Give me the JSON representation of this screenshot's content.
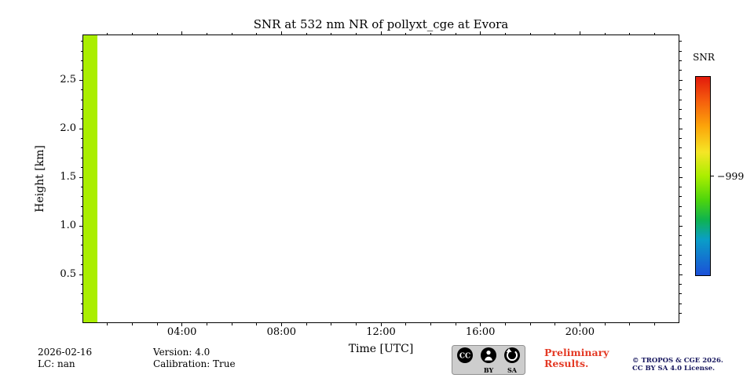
{
  "page": {
    "background": "#ffffff"
  },
  "chart_data": {
    "type": "heatmap",
    "title": "SNR at 532 nm NR of pollyxt_cge at Evora",
    "xlabel": "Time [UTC]",
    "ylabel": "Height [km]",
    "xlim_hours": [
      0,
      24
    ],
    "ylim_km": [
      0,
      2.97
    ],
    "x_major_ticks": [
      {
        "hour": 4,
        "label": "04:00"
      },
      {
        "hour": 8,
        "label": "08:00"
      },
      {
        "hour": 12,
        "label": "12:00"
      },
      {
        "hour": 16,
        "label": "16:00"
      },
      {
        "hour": 20,
        "label": "20:00"
      }
    ],
    "x_minor_step_hours": 1,
    "y_major_ticks": [
      {
        "km": 0.5,
        "label": "0.5"
      },
      {
        "km": 1.0,
        "label": "1.0"
      },
      {
        "km": 1.5,
        "label": "1.5"
      },
      {
        "km": 2.0,
        "label": "2.0"
      },
      {
        "km": 2.5,
        "label": "2.5"
      }
    ],
    "y_minor_step_km": 0.1,
    "empty_color": "#ffffff",
    "data_blocks": [
      {
        "x_start_hour": 0,
        "x_end_hour": 0.6,
        "y_start_km": 0,
        "y_end_km": 2.97,
        "value": -999,
        "color": "#aaee00"
      }
    ],
    "colorbar": {
      "label": "SNR",
      "tick_label": "−999",
      "tick_value": -999,
      "tick_pos_frac": 0.5,
      "stops": [
        {
          "pos": 0.0,
          "color": "#e31a0c"
        },
        {
          "pos": 0.12,
          "color": "#f55d0d"
        },
        {
          "pos": 0.25,
          "color": "#fca50a"
        },
        {
          "pos": 0.38,
          "color": "#f5e626"
        },
        {
          "pos": 0.5,
          "color": "#aaee00"
        },
        {
          "pos": 0.62,
          "color": "#4ed50c"
        },
        {
          "pos": 0.72,
          "color": "#0fb34f"
        },
        {
          "pos": 0.82,
          "color": "#0a9ec7"
        },
        {
          "pos": 1.0,
          "color": "#1b50d8"
        }
      ]
    }
  },
  "footer": {
    "date": "2026-02-16",
    "lc": "LC: nan",
    "version": "Version: 4.0",
    "calibration": "Calibration: True",
    "preliminary": [
      "Preliminary",
      "Results."
    ],
    "preliminary_color": "#e43a25",
    "copyright": [
      "© TROPOS & CGE 2026.",
      "CC BY SA 4.0 License."
    ],
    "copyright_color": "#16165e",
    "cc_badge": {
      "cc": "CC",
      "by": "BY",
      "sa": "SA"
    }
  }
}
